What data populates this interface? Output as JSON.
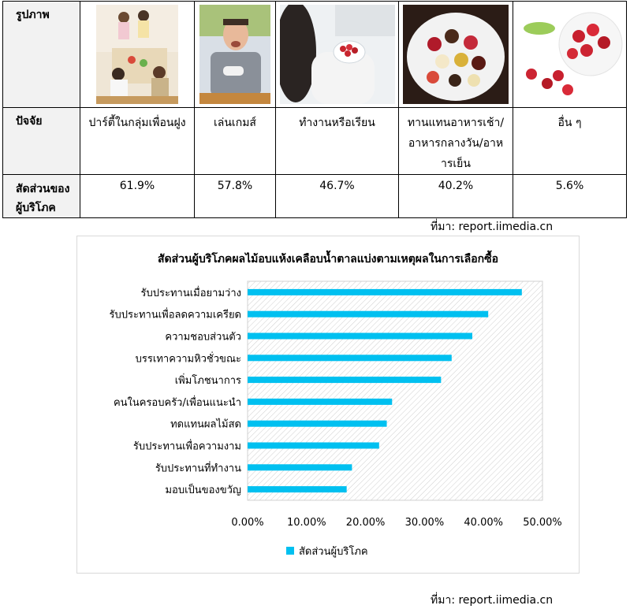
{
  "table": {
    "row_labels": {
      "image": "รูปภาพ",
      "factor": "ปัจจัย",
      "share": "สัดส่วนของผู้บริโภค"
    },
    "columns": [
      {
        "factor": "ปาร์ตี้ในกลุ่มเพื่อนฝูง",
        "share": "61.9%",
        "image": "friends-party-photo"
      },
      {
        "factor": "เล่นเกมส์",
        "share": "57.8%",
        "image": "man-playing-games-photo"
      },
      {
        "factor": "ทำงานหรือเรียน",
        "share": "46.7%",
        "image": "woman-working-snack-photo"
      },
      {
        "factor": "ทานแทนอาหารเช้า/อาหารกลางวัน/อาหารเย็น",
        "share": "40.2%",
        "image": "mixed-dried-fruit-bowl-photo"
      },
      {
        "factor": "อื่น ๆ",
        "share": "5.6%",
        "image": "dried-cranberries-photo"
      }
    ]
  },
  "source_top": "ที่มา: report.iimedia.cn",
  "source_bottom": "ที่มา: report.iimedia.cn",
  "colors": {
    "bar": "#00c0f0",
    "border": "#000000",
    "header_bg": "#f2f2f2"
  },
  "chart_data": {
    "type": "bar",
    "orientation": "horizontal",
    "title": "สัดส่วนผู้บริโภคผลไม้อบแห้งเคลือบน้ำตาลแบ่งตามเหตุผลในการเลือกซื้อ",
    "categories": [
      "รับประทานเมื่อยามว่าง",
      "รับประทานเพื่อลดความเครียด",
      "ความชอบส่วนตัว",
      "บรรเทาความหิวชั่วขณะ",
      "เพิ่มโภชนาการ",
      "คนในครอบครัว/เพื่อนแนะนำ",
      "ทดแทนผลไม้สด",
      "รับประทานเพื่อความงาม",
      "รับประทานที่ทำงาน",
      "มอบเป็นของขวัญ"
    ],
    "series": [
      {
        "name": "สัดส่วนผู้บริโภค",
        "values": [
          46.5,
          40.8,
          38.1,
          34.6,
          32.8,
          24.5,
          23.6,
          22.3,
          17.7,
          16.8
        ]
      }
    ],
    "xlim": [
      0,
      50
    ],
    "ticks": [
      "0.00%",
      "10.00%",
      "20.00%",
      "30.00%",
      "40.00%",
      "50.00%"
    ],
    "legend_position": "bottom",
    "plot_background": "diagonal-hatch"
  }
}
